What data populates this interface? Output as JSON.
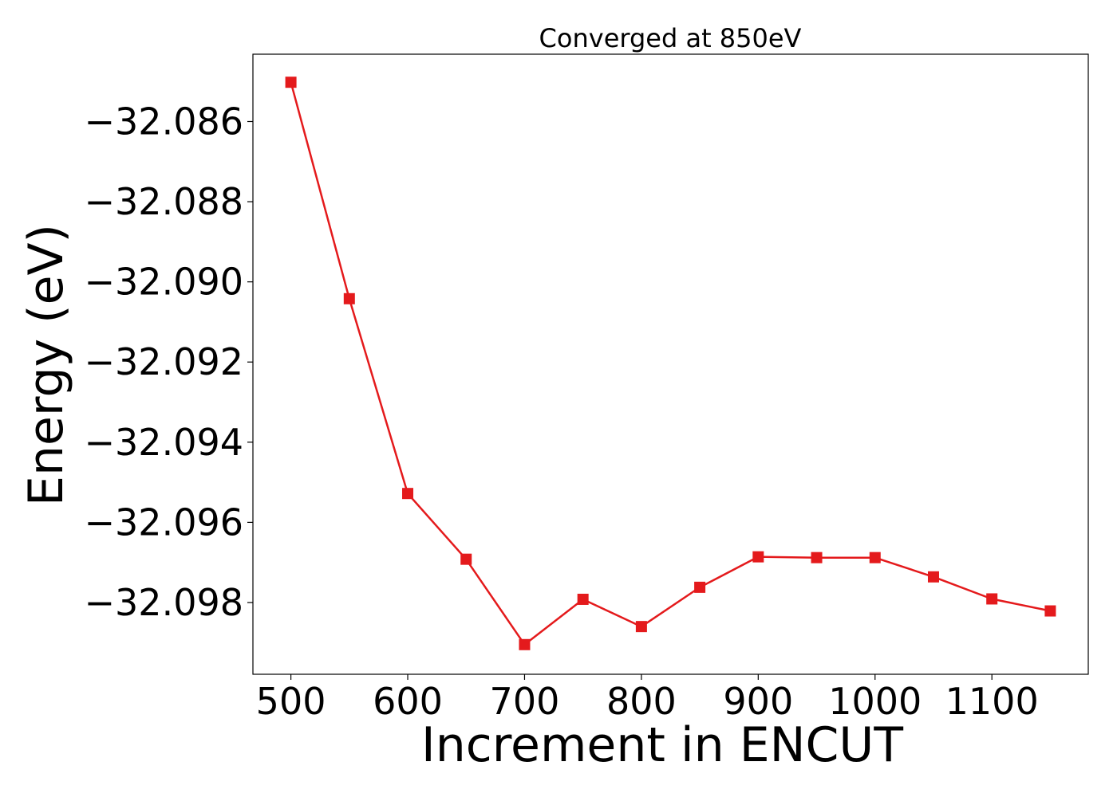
{
  "chart_data": {
    "type": "line",
    "title": "Converged at 850eV",
    "xlabel": "Increment in ENCUT",
    "ylabel": "Energy (eV)",
    "x": [
      500,
      550,
      600,
      650,
      700,
      750,
      800,
      850,
      900,
      950,
      1000,
      1050,
      1100,
      1150
    ],
    "series": [
      {
        "name": "",
        "values": [
          -32.08502,
          -32.09042,
          -32.09528,
          -32.09692,
          -32.09905,
          -32.09792,
          -32.0986,
          -32.09762,
          -32.09686,
          -32.09688,
          -32.09688,
          -32.09736,
          -32.09791,
          -32.09821
        ]
      }
    ],
    "xlim": [
      467.5,
      1182.5
    ],
    "ylim": [
      -32.09979,
      -32.08432
    ],
    "xticks": [
      500,
      600,
      700,
      800,
      900,
      1000,
      1100
    ],
    "xtick_labels": [
      "500",
      "600",
      "700",
      "800",
      "900",
      "1000",
      "1100"
    ],
    "yticks": [
      -32.086,
      -32.088,
      -32.09,
      -32.092,
      -32.094,
      -32.096,
      -32.098
    ],
    "ytick_labels": [
      "−32.086",
      "−32.088",
      "−32.090",
      "−32.092",
      "−32.094",
      "−32.096",
      "−32.098"
    ],
    "grid": false,
    "line_color": "#e41a1c",
    "marker": "square"
  }
}
